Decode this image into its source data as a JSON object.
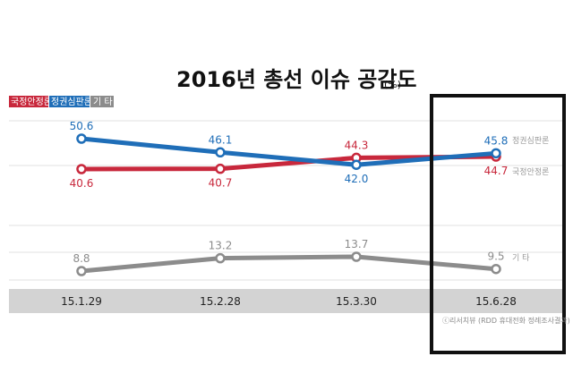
{
  "chart_data": {
    "type": "line",
    "title": "2016년 총선 이슈 공감도",
    "title_unit": "(%)",
    "categories": [
      "15.1.29",
      "15.2.28",
      "15.3.30",
      "15.6.28"
    ],
    "series": [
      {
        "name": "국정안정론",
        "color": "#c8283c",
        "values": [
          40.6,
          40.7,
          44.3,
          44.7
        ],
        "label_pos": [
          "below",
          "below",
          "above",
          "below"
        ]
      },
      {
        "name": "정권심판론",
        "color": "#1f6eb8",
        "values": [
          50.6,
          46.1,
          42.0,
          45.8
        ],
        "label_pos": [
          "above",
          "above",
          "below",
          "above"
        ]
      },
      {
        "name": "기 타",
        "color": "#8c8c8c",
        "values": [
          8.8,
          13.2,
          13.7,
          9.5
        ],
        "label_pos": [
          "above",
          "above",
          "above",
          "above"
        ]
      }
    ],
    "legend": {
      "placement": "top-left",
      "items": [
        "국정안정론",
        "정권심판론",
        "기 타"
      ]
    },
    "end_labels": [
      "정권심판론",
      "국정안정론",
      "기 타"
    ],
    "highlight_category": "15.6.28",
    "grid": true,
    "source": "ⓒ리서치뷰 (RDD 휴대전화 정례조사결과)"
  }
}
